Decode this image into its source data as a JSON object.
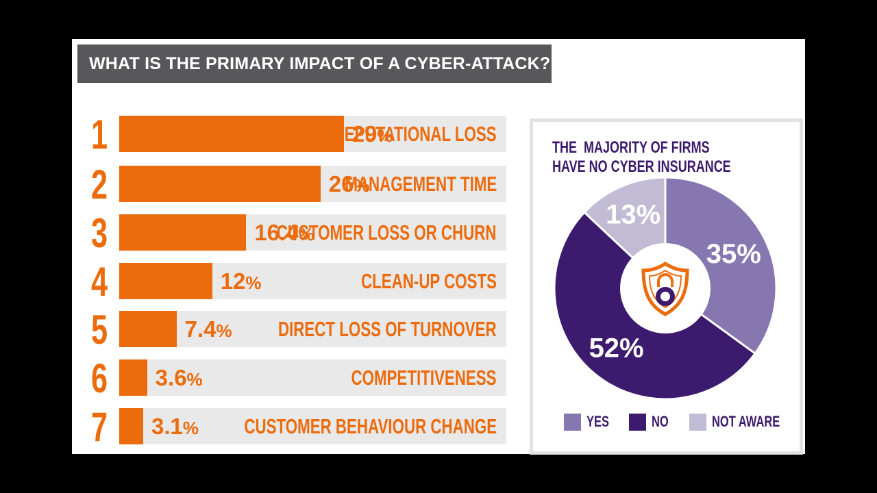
{
  "title": "WHAT IS THE PRIMARY IMPACT OF A CYBER-ATTACK?",
  "colors": {
    "accent": "#ec6b0c",
    "track": "#e9e9e9",
    "title_bar": "#58585a",
    "yes": "#8677b1",
    "no": "#3c1b6e",
    "not_aware": "#c2bbd6",
    "text_purple": "#3b1a6b"
  },
  "chart_data": [
    {
      "type": "bar",
      "title": "WHAT IS THE PRIMARY IMPACT OF A CYBER-ATTACK?",
      "xlim": [
        0,
        100
      ],
      "items": [
        {
          "rank": "1",
          "value": 29,
          "value_label": "29",
          "label": "REPUTATIONAL LOSS"
        },
        {
          "rank": "2",
          "value": 26,
          "value_label": "26",
          "label": "MANAGEMENT TIME"
        },
        {
          "rank": "3",
          "value": 16.4,
          "value_label": "16.4",
          "label": "CUSTOMER LOSS OR CHURN"
        },
        {
          "rank": "4",
          "value": 12,
          "value_label": "12",
          "label": "CLEAN-UP COSTS"
        },
        {
          "rank": "5",
          "value": 7.4,
          "value_label": "7.4",
          "label": "DIRECT LOSS OF TURNOVER"
        },
        {
          "rank": "6",
          "value": 3.6,
          "value_label": "3.6",
          "label": "COMPETITIVENESS"
        },
        {
          "rank": "7",
          "value": 3.1,
          "value_label": "3.1",
          "label": "CUSTOMER BEHAVIOUR CHANGE"
        }
      ],
      "percent_symbol": "%"
    },
    {
      "type": "pie",
      "title_lines": [
        "THE  MAJORITY OF FIRMS",
        "HAVE NO CYBER INSURANCE"
      ],
      "slices": [
        {
          "name": "YES",
          "value": 35,
          "label": "35%"
        },
        {
          "name": "NO",
          "value": 52,
          "label": "52%"
        },
        {
          "name": "NOT AWARE",
          "value": 13,
          "label": "13%"
        }
      ],
      "center_icon": "shield-lock-icon",
      "legend_position": "bottom"
    }
  ]
}
